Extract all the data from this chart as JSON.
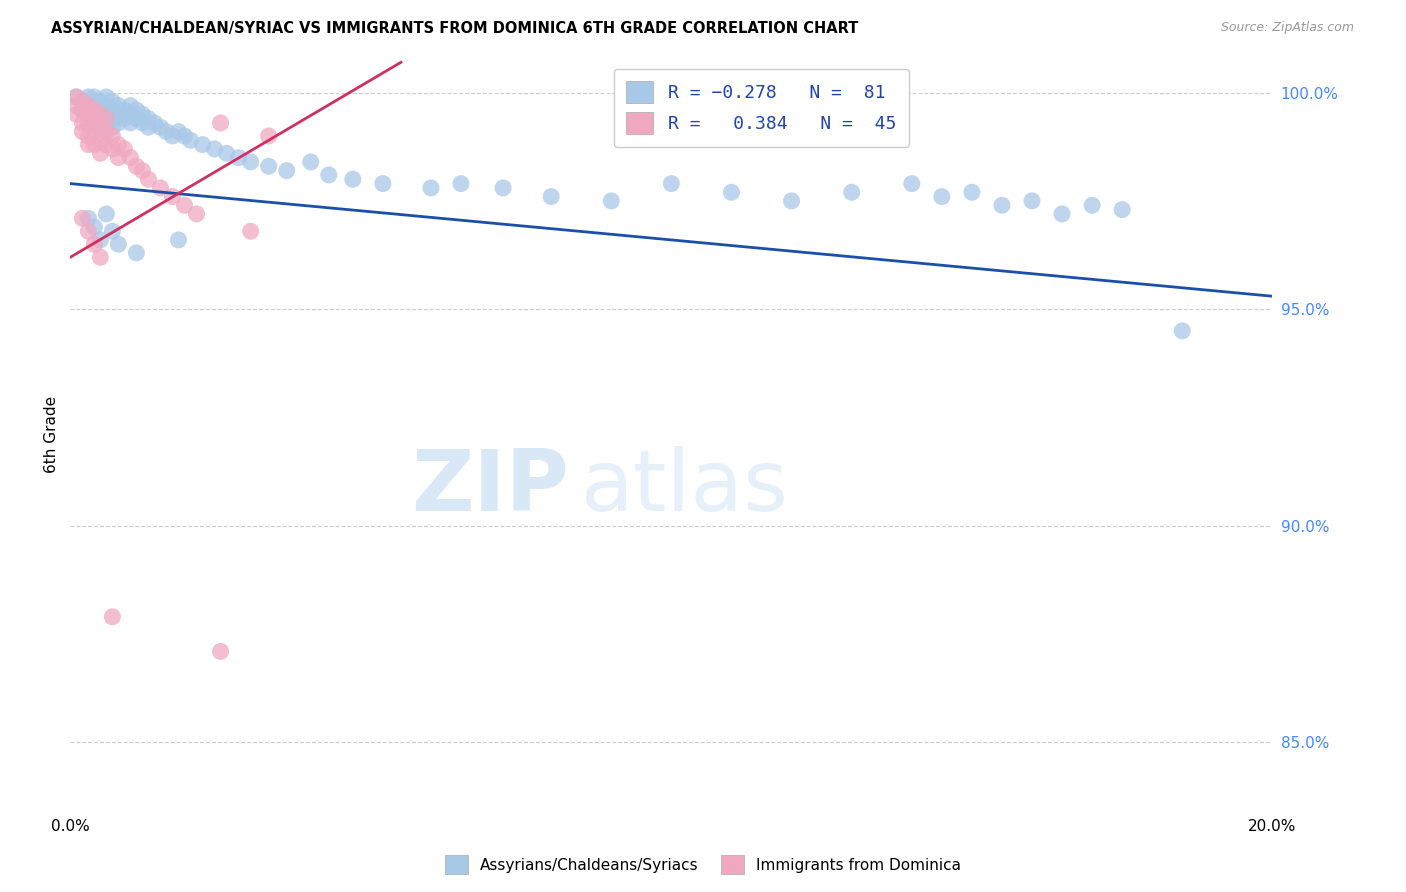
{
  "title": "ASSYRIAN/CHALDEAN/SYRIAC VS IMMIGRANTS FROM DOMINICA 6TH GRADE CORRELATION CHART",
  "source": "Source: ZipAtlas.com",
  "ylabel": "6th Grade",
  "xmin": 0.0,
  "xmax": 0.2,
  "ymin": 0.834,
  "ymax": 1.008,
  "yticks": [
    0.85,
    0.9,
    0.95,
    1.0
  ],
  "ytick_labels": [
    "85.0%",
    "90.0%",
    "95.0%",
    "100.0%"
  ],
  "xticks": [
    0.0,
    0.04,
    0.08,
    0.12,
    0.16,
    0.2
  ],
  "xtick_labels": [
    "0.0%",
    "",
    "",
    "",
    "",
    "20.0%"
  ],
  "blue_color": "#a8c8e8",
  "pink_color": "#f0a8c0",
  "blue_line_color": "#1a4faa",
  "pink_line_color": "#d03060",
  "blue_trend_x": [
    0.0,
    0.2
  ],
  "blue_trend_y": [
    0.979,
    0.953
  ],
  "pink_trend_x": [
    0.0,
    0.055
  ],
  "pink_trend_y": [
    0.962,
    1.007
  ],
  "blue_dots": [
    [
      0.001,
      0.999
    ],
    [
      0.002,
      0.998
    ],
    [
      0.002,
      0.996
    ],
    [
      0.003,
      0.999
    ],
    [
      0.003,
      0.997
    ],
    [
      0.003,
      0.995
    ],
    [
      0.004,
      0.999
    ],
    [
      0.004,
      0.997
    ],
    [
      0.004,
      0.995
    ],
    [
      0.004,
      0.993
    ],
    [
      0.005,
      0.998
    ],
    [
      0.005,
      0.996
    ],
    [
      0.005,
      0.994
    ],
    [
      0.005,
      0.992
    ],
    [
      0.006,
      0.999
    ],
    [
      0.006,
      0.997
    ],
    [
      0.006,
      0.995
    ],
    [
      0.006,
      0.993
    ],
    [
      0.007,
      0.998
    ],
    [
      0.007,
      0.996
    ],
    [
      0.007,
      0.994
    ],
    [
      0.007,
      0.992
    ],
    [
      0.008,
      0.997
    ],
    [
      0.008,
      0.995
    ],
    [
      0.008,
      0.993
    ],
    [
      0.009,
      0.996
    ],
    [
      0.009,
      0.994
    ],
    [
      0.01,
      0.997
    ],
    [
      0.01,
      0.995
    ],
    [
      0.01,
      0.993
    ],
    [
      0.011,
      0.996
    ],
    [
      0.011,
      0.994
    ],
    [
      0.012,
      0.995
    ],
    [
      0.012,
      0.993
    ],
    [
      0.013,
      0.994
    ],
    [
      0.013,
      0.992
    ],
    [
      0.014,
      0.993
    ],
    [
      0.015,
      0.992
    ],
    [
      0.016,
      0.991
    ],
    [
      0.017,
      0.99
    ],
    [
      0.018,
      0.991
    ],
    [
      0.019,
      0.99
    ],
    [
      0.02,
      0.989
    ],
    [
      0.022,
      0.988
    ],
    [
      0.024,
      0.987
    ],
    [
      0.026,
      0.986
    ],
    [
      0.028,
      0.985
    ],
    [
      0.03,
      0.984
    ],
    [
      0.033,
      0.983
    ],
    [
      0.036,
      0.982
    ],
    [
      0.04,
      0.984
    ],
    [
      0.043,
      0.981
    ],
    [
      0.047,
      0.98
    ],
    [
      0.052,
      0.979
    ],
    [
      0.06,
      0.978
    ],
    [
      0.065,
      0.979
    ],
    [
      0.072,
      0.978
    ],
    [
      0.08,
      0.976
    ],
    [
      0.09,
      0.975
    ],
    [
      0.1,
      0.979
    ],
    [
      0.11,
      0.977
    ],
    [
      0.12,
      0.975
    ],
    [
      0.13,
      0.977
    ],
    [
      0.14,
      0.979
    ],
    [
      0.145,
      0.976
    ],
    [
      0.15,
      0.977
    ],
    [
      0.155,
      0.974
    ],
    [
      0.16,
      0.975
    ],
    [
      0.165,
      0.972
    ],
    [
      0.17,
      0.974
    ],
    [
      0.175,
      0.973
    ],
    [
      0.003,
      0.971
    ],
    [
      0.004,
      0.969
    ],
    [
      0.005,
      0.966
    ],
    [
      0.006,
      0.972
    ],
    [
      0.007,
      0.968
    ],
    [
      0.008,
      0.965
    ],
    [
      0.011,
      0.963
    ],
    [
      0.018,
      0.966
    ],
    [
      0.185,
      0.945
    ]
  ],
  "pink_dots": [
    [
      0.001,
      0.999
    ],
    [
      0.001,
      0.997
    ],
    [
      0.001,
      0.995
    ],
    [
      0.002,
      0.998
    ],
    [
      0.002,
      0.996
    ],
    [
      0.002,
      0.993
    ],
    [
      0.002,
      0.991
    ],
    [
      0.003,
      0.997
    ],
    [
      0.003,
      0.995
    ],
    [
      0.003,
      0.993
    ],
    [
      0.003,
      0.99
    ],
    [
      0.003,
      0.988
    ],
    [
      0.004,
      0.996
    ],
    [
      0.004,
      0.994
    ],
    [
      0.004,
      0.991
    ],
    [
      0.004,
      0.988
    ],
    [
      0.005,
      0.995
    ],
    [
      0.005,
      0.992
    ],
    [
      0.005,
      0.989
    ],
    [
      0.005,
      0.986
    ],
    [
      0.006,
      0.994
    ],
    [
      0.006,
      0.991
    ],
    [
      0.006,
      0.988
    ],
    [
      0.007,
      0.99
    ],
    [
      0.007,
      0.987
    ],
    [
      0.008,
      0.988
    ],
    [
      0.008,
      0.985
    ],
    [
      0.009,
      0.987
    ],
    [
      0.01,
      0.985
    ],
    [
      0.011,
      0.983
    ],
    [
      0.012,
      0.982
    ],
    [
      0.013,
      0.98
    ],
    [
      0.015,
      0.978
    ],
    [
      0.017,
      0.976
    ],
    [
      0.019,
      0.974
    ],
    [
      0.021,
      0.972
    ],
    [
      0.025,
      0.993
    ],
    [
      0.03,
      0.968
    ],
    [
      0.033,
      0.99
    ],
    [
      0.002,
      0.971
    ],
    [
      0.003,
      0.968
    ],
    [
      0.004,
      0.965
    ],
    [
      0.005,
      0.962
    ],
    [
      0.007,
      0.879
    ],
    [
      0.025,
      0.871
    ]
  ]
}
